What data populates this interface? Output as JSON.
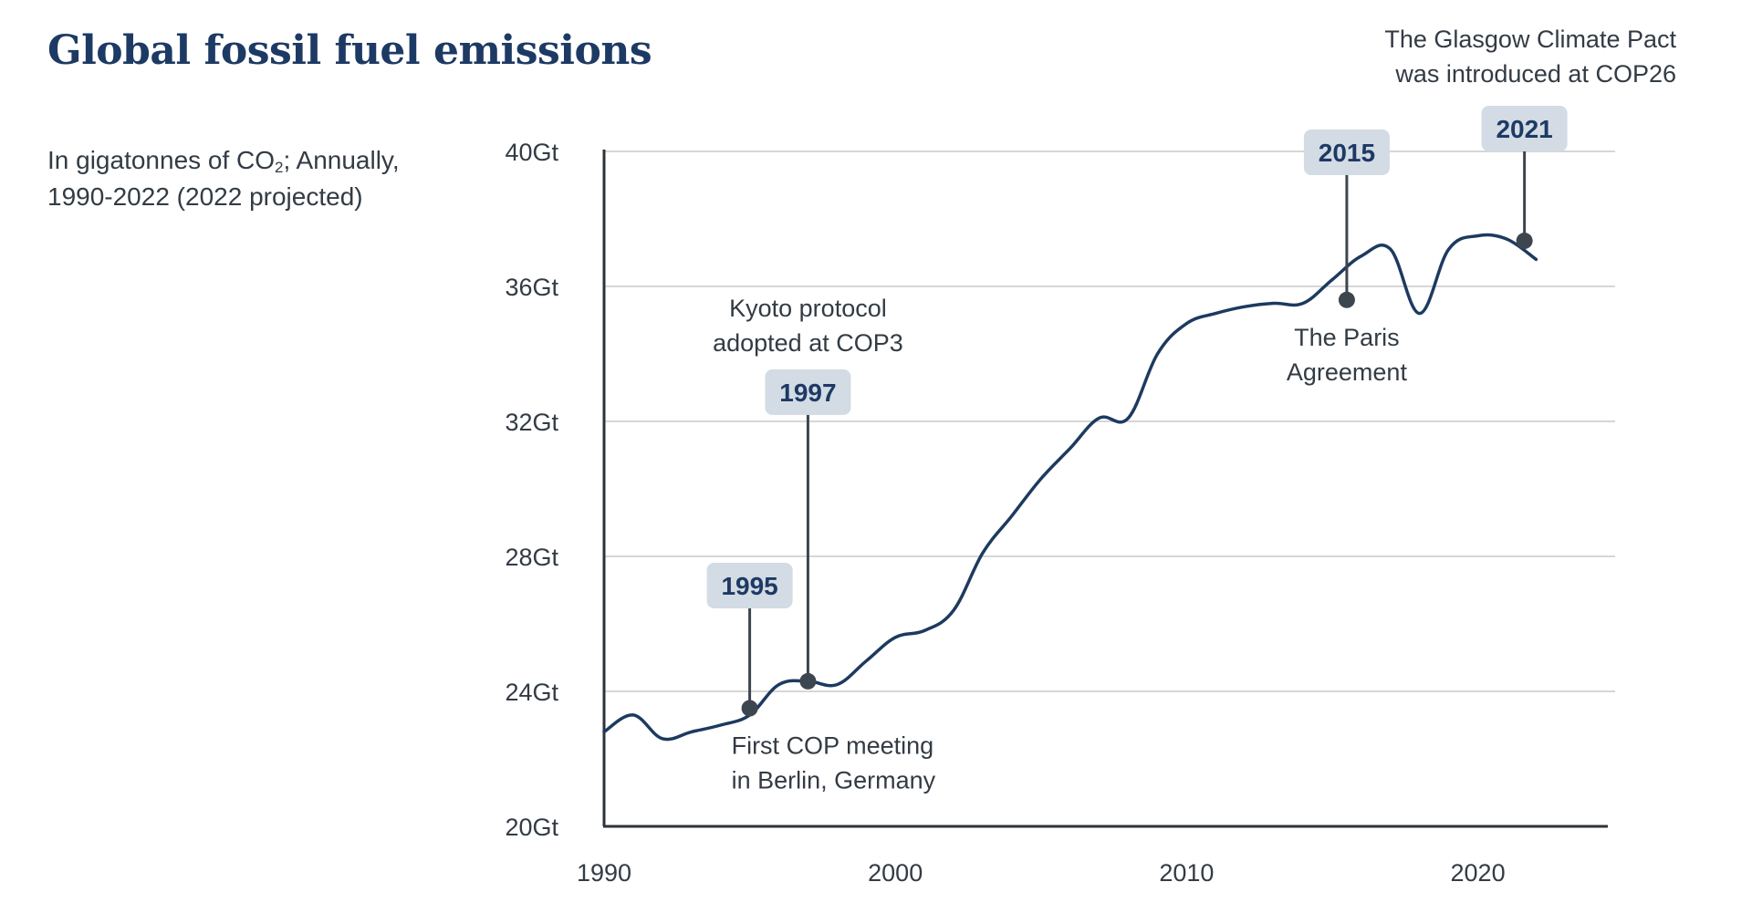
{
  "subtitle": {
    "prefix": "In gigatonnes of CO",
    "subscript": "2",
    "suffix": "; Annually, 1990-2022 (2022 projected)"
  },
  "colors": {
    "title": "#1d3a64",
    "line": "#1d3a5f",
    "marker": "#3d454e",
    "badge_bg": "#d3dbe4",
    "badge_text": "#1d3a64",
    "grid": "#c8c8c8",
    "axis": "#2e3338",
    "text": "#333b44"
  },
  "chart_data": {
    "type": "line",
    "title": "Global fossil fuel emissions",
    "xlabel": "",
    "ylabel": "",
    "unit": "Gt",
    "xlim": [
      1990,
      2024.4
    ],
    "ylim": [
      20,
      40
    ],
    "x_ticks": [
      {
        "value": 1990,
        "label": "1990"
      },
      {
        "value": 2000,
        "label": "2000"
      },
      {
        "value": 2010,
        "label": "2010"
      },
      {
        "value": 2020,
        "label": "2020"
      }
    ],
    "y_ticks": [
      {
        "value": 20,
        "label": "20Gt"
      },
      {
        "value": 24,
        "label": "24Gt"
      },
      {
        "value": 28,
        "label": "28Gt"
      },
      {
        "value": 32,
        "label": "32Gt"
      },
      {
        "value": 36,
        "label": "36Gt"
      },
      {
        "value": 40,
        "label": "40Gt"
      }
    ],
    "grid": true,
    "series": [
      {
        "x": [
          1990,
          1991,
          1992,
          1993,
          1994,
          1995,
          1996,
          1997,
          1998,
          1999,
          2000,
          2001,
          2002,
          2003,
          2004,
          2005,
          2006,
          2007,
          2008,
          2009,
          2010,
          2011,
          2012,
          2013,
          2014,
          2015,
          2016,
          2017,
          2018,
          2019,
          2020,
          2021,
          2022
        ],
        "y": [
          22.8,
          23.3,
          22.6,
          22.8,
          23.0,
          23.3,
          24.2,
          24.3,
          24.2,
          24.9,
          25.6,
          25.8,
          26.4,
          28.1,
          29.2,
          30.3,
          31.2,
          32.1,
          32.1,
          34.0,
          34.9,
          35.2,
          35.4,
          35.5,
          35.5,
          36.2,
          36.9,
          37.1,
          35.2,
          37.1,
          37.5,
          37.4,
          36.8
        ]
      }
    ],
    "events": [
      {
        "year": 1995,
        "y": 23.5,
        "badge": "1995",
        "direction": "up",
        "note": [
          "First COP meeting",
          "in Berlin, Germany"
        ],
        "note_side": "below"
      },
      {
        "year": 1997,
        "y": 24.3,
        "badge": "1997",
        "direction": "up",
        "note": [
          "Kyoto protocol",
          "adopted at COP3"
        ],
        "note_side": "above"
      },
      {
        "year": 2015.5,
        "y": 35.6,
        "badge": "2015",
        "direction": "up",
        "note": [
          "The Paris",
          "Agreement"
        ],
        "note_side": "below"
      },
      {
        "year": 2021.6,
        "y": 37.35,
        "badge": "2021",
        "direction": "up",
        "note": [
          "The Glasgow Climate Pact",
          "was introduced at COP26"
        ],
        "note_side": "above-right"
      }
    ]
  }
}
